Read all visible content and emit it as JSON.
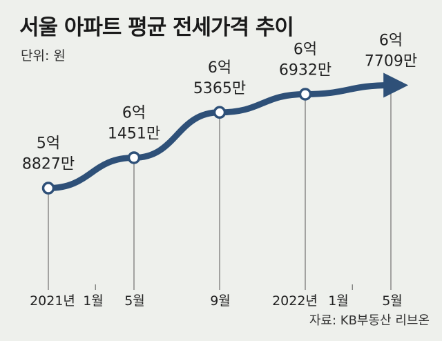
{
  "title": "서울 아파트 평균 전세가격 추이",
  "unit": "단위: 원",
  "source": "자료: KB부동산 리브온",
  "colors": {
    "line": "#2e5078",
    "marker_fill": "#ffffff",
    "guide": "#555555",
    "background": "#eef0ec"
  },
  "chart_data": {
    "type": "line",
    "title": "서울 아파트 평균 전세가격 추이",
    "unit": "단위: 원",
    "x_ticks": [
      "2021년",
      "1월",
      "5월",
      "9월",
      "2022년",
      "1월",
      "5월"
    ],
    "points": [
      {
        "x": "2021-01",
        "y": 588270000,
        "label_line1": "5억",
        "label_line2": "8827만"
      },
      {
        "x": "2021-05",
        "y": 614510000,
        "label_line1": "6억",
        "label_line2": "1451만"
      },
      {
        "x": "2021-09",
        "y": 653650000,
        "label_line1": "6억",
        "label_line2": "5365만"
      },
      {
        "x": "2022-01",
        "y": 669320000,
        "label_line1": "6억",
        "label_line2": "6932만"
      },
      {
        "x": "2022-05",
        "y": 677090000,
        "label_line1": "6억",
        "label_line2": "7709만"
      }
    ],
    "ylim": [
      560000000,
      700000000
    ],
    "grid": false,
    "legend": "none"
  }
}
